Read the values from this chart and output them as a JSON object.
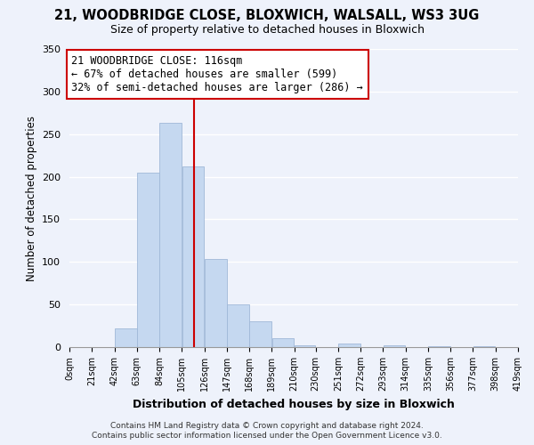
{
  "title1": "21, WOODBRIDGE CLOSE, BLOXWICH, WALSALL, WS3 3UG",
  "title2": "Size of property relative to detached houses in Bloxwich",
  "xlabel": "Distribution of detached houses by size in Bloxwich",
  "ylabel": "Number of detached properties",
  "bin_edges": [
    0,
    21,
    42,
    63,
    84,
    105,
    126,
    147,
    168,
    189,
    210,
    230,
    251,
    272,
    293,
    314,
    335,
    356,
    377,
    398,
    419
  ],
  "bar_heights": [
    0,
    0,
    22,
    205,
    263,
    212,
    103,
    50,
    30,
    10,
    2,
    0,
    4,
    0,
    2,
    0,
    1,
    0,
    1,
    0
  ],
  "bar_color": "#c5d8f0",
  "bar_edge_color": "#a0b8d8",
  "vline_x": 116,
  "vline_color": "#cc0000",
  "annotation_text": "21 WOODBRIDGE CLOSE: 116sqm\n← 67% of detached houses are smaller (599)\n32% of semi-detached houses are larger (286) →",
  "annotation_box_color": "white",
  "annotation_box_edge_color": "#cc0000",
  "ylim": [
    0,
    350
  ],
  "yticks": [
    0,
    50,
    100,
    150,
    200,
    250,
    300,
    350
  ],
  "xtick_labels": [
    "0sqm",
    "21sqm",
    "42sqm",
    "63sqm",
    "84sqm",
    "105sqm",
    "126sqm",
    "147sqm",
    "168sqm",
    "189sqm",
    "210sqm",
    "230sqm",
    "251sqm",
    "272sqm",
    "293sqm",
    "314sqm",
    "335sqm",
    "356sqm",
    "377sqm",
    "398sqm",
    "419sqm"
  ],
  "footer1": "Contains HM Land Registry data © Crown copyright and database right 2024.",
  "footer2": "Contains public sector information licensed under the Open Government Licence v3.0.",
  "bg_color": "#eef2fb",
  "grid_color": "white",
  "title1_fontsize": 10.5,
  "title2_fontsize": 9,
  "annotation_fontsize": 8.5,
  "footer_fontsize": 6.5
}
